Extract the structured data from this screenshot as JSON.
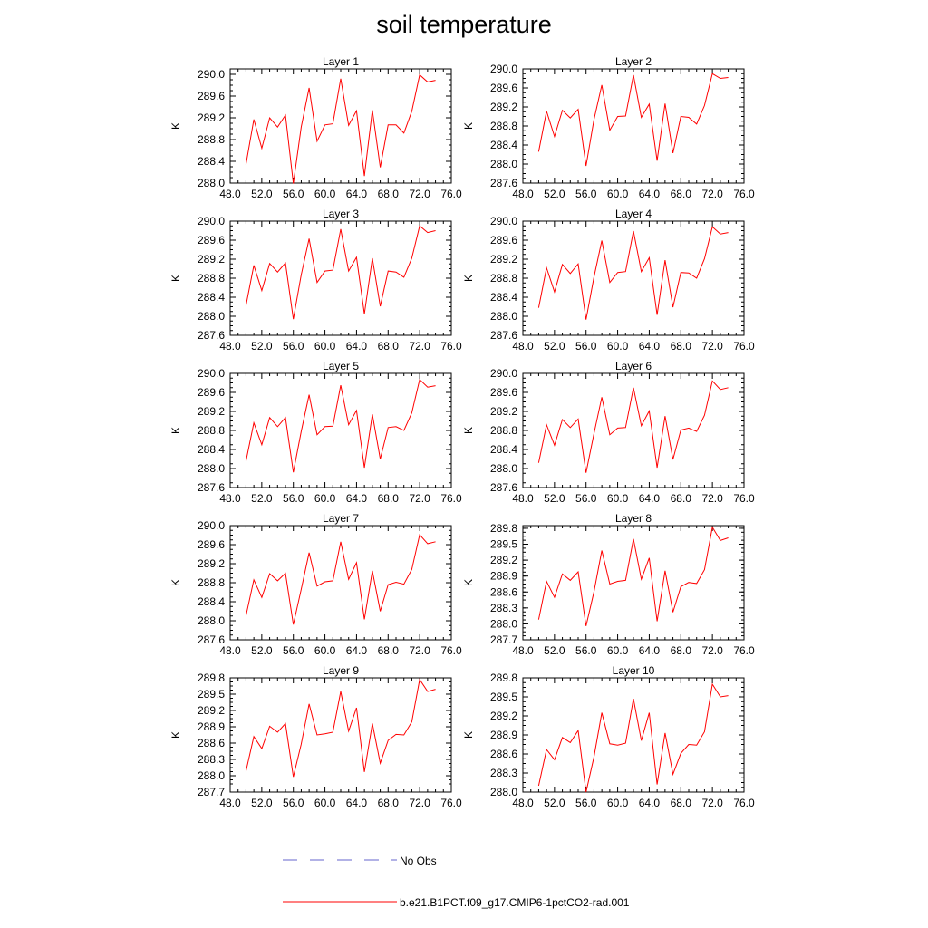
{
  "title": "soil temperature",
  "colors": {
    "model_line": "#ff0000",
    "obs_line": "#6666cc",
    "axis": "#000000"
  },
  "legend": [
    {
      "label": "No Obs",
      "style": "dashed",
      "color": "#6666cc"
    },
    {
      "label": "b.e21.B1PCT.f09_g17.CMIP6-1pctCO2-rad.001",
      "style": "solid",
      "color": "#ff0000"
    }
  ],
  "chart_data": [
    {
      "type": "line",
      "title": "Layer 1",
      "ylabel": "K",
      "xlim": [
        48,
        76
      ],
      "xticks": [
        "48.0",
        "52.0",
        "56.0",
        "60.0",
        "64.0",
        "68.0",
        "72.0",
        "76.0"
      ],
      "ylim": [
        288.0,
        290.1
      ],
      "yticks": [
        "288.0",
        "288.4",
        "288.8",
        "289.2",
        "289.6",
        "290.0"
      ],
      "ytick_values": [
        288.0,
        288.4,
        288.8,
        289.2,
        289.6,
        290.0
      ],
      "x": [
        50,
        51,
        52,
        53,
        54,
        55,
        56,
        57,
        58,
        59,
        60,
        61,
        62,
        63,
        64,
        65,
        66,
        67,
        68,
        69,
        70,
        71,
        72,
        73,
        74
      ],
      "series": [
        {
          "name": "b.e21.B1PCT.f09_g17.CMIP6-1pctCO2-rad.001",
          "values": [
            288.34,
            289.17,
            288.64,
            289.2,
            289.03,
            289.25,
            287.99,
            289.03,
            289.75,
            288.77,
            289.07,
            289.09,
            289.92,
            289.06,
            289.33,
            288.13,
            289.34,
            288.29,
            289.07,
            289.07,
            288.92,
            289.32,
            289.99,
            289.86,
            289.89
          ]
        }
      ]
    },
    {
      "type": "line",
      "title": "Layer 2",
      "ylabel": "K",
      "xlim": [
        48,
        76
      ],
      "xticks": [
        "48.0",
        "52.0",
        "56.0",
        "60.0",
        "64.0",
        "68.0",
        "72.0",
        "76.0"
      ],
      "ylim": [
        287.6,
        290.0
      ],
      "yticks": [
        "287.6",
        "288.0",
        "288.4",
        "288.8",
        "289.2",
        "289.6",
        "290.0"
      ],
      "ytick_values": [
        287.6,
        288.0,
        288.4,
        288.8,
        289.2,
        289.6,
        290.0
      ],
      "x": [
        50,
        51,
        52,
        53,
        54,
        55,
        56,
        57,
        58,
        59,
        60,
        61,
        62,
        63,
        64,
        65,
        66,
        67,
        68,
        69,
        70,
        71,
        72,
        73,
        74
      ],
      "series": [
        {
          "name": "b.e21.B1PCT.f09_g17.CMIP6-1pctCO2-rad.001",
          "values": [
            288.26,
            289.11,
            288.58,
            289.13,
            288.97,
            289.15,
            287.96,
            288.93,
            289.66,
            288.71,
            289.0,
            289.01,
            289.87,
            288.98,
            289.26,
            288.07,
            289.27,
            288.23,
            289.0,
            288.98,
            288.84,
            289.23,
            289.9,
            289.8,
            289.82
          ]
        }
      ]
    },
    {
      "type": "line",
      "title": "Layer 3",
      "ylabel": "K",
      "xlim": [
        48,
        76
      ],
      "xticks": [
        "48.0",
        "52.0",
        "56.0",
        "60.0",
        "64.0",
        "68.0",
        "72.0",
        "76.0"
      ],
      "ylim": [
        287.6,
        290.0
      ],
      "yticks": [
        "287.6",
        "288.0",
        "288.4",
        "288.8",
        "289.2",
        "289.6",
        "290.0"
      ],
      "ytick_values": [
        287.6,
        288.0,
        288.4,
        288.8,
        289.2,
        289.6,
        290.0
      ],
      "x": [
        50,
        51,
        52,
        53,
        54,
        55,
        56,
        57,
        58,
        59,
        60,
        61,
        62,
        63,
        64,
        65,
        66,
        67,
        68,
        69,
        70,
        71,
        72,
        73,
        74
      ],
      "series": [
        {
          "name": "b.e21.B1PCT.f09_g17.CMIP6-1pctCO2-rad.001",
          "values": [
            288.22,
            289.07,
            288.54,
            289.11,
            288.93,
            289.12,
            287.94,
            288.87,
            289.63,
            288.71,
            288.95,
            288.97,
            289.83,
            288.95,
            289.24,
            288.05,
            289.22,
            288.21,
            288.95,
            288.93,
            288.82,
            289.22,
            289.9,
            289.76,
            289.8
          ]
        }
      ]
    },
    {
      "type": "line",
      "title": "Layer 4",
      "ylabel": "K",
      "xlim": [
        48,
        76
      ],
      "xticks": [
        "48.0",
        "52.0",
        "56.0",
        "60.0",
        "64.0",
        "68.0",
        "72.0",
        "76.0"
      ],
      "ylim": [
        287.6,
        290.0
      ],
      "yticks": [
        "287.6",
        "288.0",
        "288.4",
        "288.8",
        "289.2",
        "289.6",
        "290.0"
      ],
      "ytick_values": [
        287.6,
        288.0,
        288.4,
        288.8,
        289.2,
        289.6,
        290.0
      ],
      "x": [
        50,
        51,
        52,
        53,
        54,
        55,
        56,
        57,
        58,
        59,
        60,
        61,
        62,
        63,
        64,
        65,
        66,
        67,
        68,
        69,
        70,
        71,
        72,
        73,
        74
      ],
      "series": [
        {
          "name": "b.e21.B1PCT.f09_g17.CMIP6-1pctCO2-rad.001",
          "values": [
            288.18,
            289.02,
            288.51,
            289.09,
            288.9,
            289.1,
            287.93,
            288.82,
            289.59,
            288.71,
            288.92,
            288.94,
            289.79,
            288.94,
            289.23,
            288.03,
            289.18,
            288.19,
            288.92,
            288.91,
            288.8,
            289.21,
            289.88,
            289.73,
            289.76
          ]
        }
      ]
    },
    {
      "type": "line",
      "title": "Layer 5",
      "ylabel": "K",
      "xlim": [
        48,
        76
      ],
      "xticks": [
        "48.0",
        "52.0",
        "56.0",
        "60.0",
        "64.0",
        "68.0",
        "72.0",
        "76.0"
      ],
      "ylim": [
        287.6,
        290.0
      ],
      "yticks": [
        "287.6",
        "288.0",
        "288.4",
        "288.8",
        "289.2",
        "289.6",
        "290.0"
      ],
      "ytick_values": [
        287.6,
        288.0,
        288.4,
        288.8,
        289.2,
        289.6,
        290.0
      ],
      "x": [
        50,
        51,
        52,
        53,
        54,
        55,
        56,
        57,
        58,
        59,
        60,
        61,
        62,
        63,
        64,
        65,
        66,
        67,
        68,
        69,
        70,
        71,
        72,
        73,
        74
      ],
      "series": [
        {
          "name": "b.e21.B1PCT.f09_g17.CMIP6-1pctCO2-rad.001",
          "values": [
            288.15,
            288.96,
            288.5,
            289.07,
            288.88,
            289.07,
            287.92,
            288.78,
            289.55,
            288.71,
            288.88,
            288.89,
            289.75,
            288.92,
            289.22,
            288.02,
            289.14,
            288.2,
            288.86,
            288.88,
            288.8,
            289.17,
            289.87,
            289.71,
            289.74
          ]
        }
      ]
    },
    {
      "type": "line",
      "title": "Layer 6",
      "ylabel": "K",
      "xlim": [
        48,
        76
      ],
      "xticks": [
        "48.0",
        "52.0",
        "56.0",
        "60.0",
        "64.0",
        "68.0",
        "72.0",
        "76.0"
      ],
      "ylim": [
        287.6,
        290.0
      ],
      "yticks": [
        "287.6",
        "288.0",
        "288.4",
        "288.8",
        "289.2",
        "289.6",
        "290.0"
      ],
      "ytick_values": [
        287.6,
        288.0,
        288.4,
        288.8,
        289.2,
        289.6,
        290.0
      ],
      "x": [
        50,
        51,
        52,
        53,
        54,
        55,
        56,
        57,
        58,
        59,
        60,
        61,
        62,
        63,
        64,
        65,
        66,
        67,
        68,
        69,
        70,
        71,
        72,
        73,
        74
      ],
      "series": [
        {
          "name": "b.e21.B1PCT.f09_g17.CMIP6-1pctCO2-rad.001",
          "values": [
            288.12,
            288.92,
            288.49,
            289.03,
            288.86,
            289.04,
            287.91,
            288.73,
            289.5,
            288.71,
            288.85,
            288.86,
            289.7,
            288.9,
            289.21,
            288.02,
            289.1,
            288.19,
            288.81,
            288.85,
            288.78,
            289.12,
            289.84,
            289.66,
            289.7
          ]
        }
      ]
    },
    {
      "type": "line",
      "title": "Layer 7",
      "ylabel": "K",
      "xlim": [
        48,
        76
      ],
      "xticks": [
        "48.0",
        "52.0",
        "56.0",
        "60.0",
        "64.0",
        "68.0",
        "72.0",
        "76.0"
      ],
      "ylim": [
        287.6,
        290.0
      ],
      "yticks": [
        "287.6",
        "288.0",
        "288.4",
        "288.8",
        "289.2",
        "289.6",
        "290.0"
      ],
      "ytick_values": [
        287.6,
        288.0,
        288.4,
        288.8,
        289.2,
        289.6,
        290.0
      ],
      "x": [
        50,
        51,
        52,
        53,
        54,
        55,
        56,
        57,
        58,
        59,
        60,
        61,
        62,
        63,
        64,
        65,
        66,
        67,
        68,
        69,
        70,
        71,
        72,
        73,
        74
      ],
      "series": [
        {
          "name": "b.e21.B1PCT.f09_g17.CMIP6-1pctCO2-rad.001",
          "values": [
            288.1,
            288.86,
            288.49,
            288.99,
            288.84,
            289.0,
            287.92,
            288.66,
            289.43,
            288.73,
            288.82,
            288.84,
            289.66,
            288.87,
            289.22,
            288.03,
            289.05,
            288.2,
            288.76,
            288.81,
            288.77,
            289.08,
            289.81,
            289.62,
            289.66
          ]
        }
      ]
    },
    {
      "type": "line",
      "title": "Layer 8",
      "ylabel": "K",
      "xlim": [
        48,
        76
      ],
      "xticks": [
        "48.0",
        "52.0",
        "56.0",
        "60.0",
        "64.0",
        "68.0",
        "72.0",
        "76.0"
      ],
      "ylim": [
        287.7,
        289.85
      ],
      "yticks": [
        "287.7",
        "288.0",
        "288.3",
        "288.6",
        "288.9",
        "289.2",
        "289.5",
        "289.8"
      ],
      "ytick_values": [
        287.7,
        288.0,
        288.3,
        288.6,
        288.9,
        289.2,
        289.5,
        289.8
      ],
      "x": [
        50,
        51,
        52,
        53,
        54,
        55,
        56,
        57,
        58,
        59,
        60,
        61,
        62,
        63,
        64,
        65,
        66,
        67,
        68,
        69,
        70,
        71,
        72,
        73,
        74
      ],
      "series": [
        {
          "name": "b.e21.B1PCT.f09_g17.CMIP6-1pctCO2-rad.001",
          "values": [
            288.08,
            288.8,
            288.5,
            288.94,
            288.82,
            288.98,
            287.96,
            288.6,
            289.38,
            288.75,
            288.8,
            288.82,
            289.6,
            288.84,
            289.24,
            288.05,
            289.0,
            288.22,
            288.7,
            288.78,
            288.76,
            289.02,
            289.82,
            289.57,
            289.62
          ]
        }
      ]
    },
    {
      "type": "line",
      "title": "Layer 9",
      "ylabel": "K",
      "xlim": [
        48,
        76
      ],
      "xticks": [
        "48.0",
        "52.0",
        "56.0",
        "60.0",
        "64.0",
        "68.0",
        "72.0",
        "76.0"
      ],
      "ylim": [
        287.7,
        289.8
      ],
      "yticks": [
        "287.7",
        "288.0",
        "288.3",
        "288.6",
        "288.9",
        "289.2",
        "289.5",
        "289.8"
      ],
      "ytick_values": [
        287.7,
        288.0,
        288.3,
        288.6,
        288.9,
        289.2,
        289.5,
        289.8
      ],
      "x": [
        50,
        51,
        52,
        53,
        54,
        55,
        56,
        57,
        58,
        59,
        60,
        61,
        62,
        63,
        64,
        65,
        66,
        67,
        68,
        69,
        70,
        71,
        72,
        73,
        74
      ],
      "series": [
        {
          "name": "b.e21.B1PCT.f09_g17.CMIP6-1pctCO2-rad.001",
          "values": [
            288.08,
            288.72,
            288.5,
            288.91,
            288.8,
            288.96,
            287.98,
            288.58,
            289.32,
            288.75,
            288.77,
            288.8,
            289.55,
            288.82,
            289.25,
            288.07,
            288.96,
            288.23,
            288.65,
            288.76,
            288.75,
            288.99,
            289.77,
            289.55,
            289.59
          ]
        }
      ]
    },
    {
      "type": "line",
      "title": "Layer 10",
      "ylabel": "K",
      "xlim": [
        48,
        76
      ],
      "xticks": [
        "48.0",
        "52.0",
        "56.0",
        "60.0",
        "64.0",
        "68.0",
        "72.0",
        "76.0"
      ],
      "ylim": [
        288.0,
        289.8
      ],
      "yticks": [
        "288.0",
        "288.3",
        "288.6",
        "288.9",
        "289.2",
        "289.5",
        "289.8"
      ],
      "ytick_values": [
        288.0,
        288.3,
        288.6,
        288.9,
        289.2,
        289.5,
        289.8
      ],
      "x": [
        50,
        51,
        52,
        53,
        54,
        55,
        56,
        57,
        58,
        59,
        60,
        61,
        62,
        63,
        64,
        65,
        66,
        67,
        68,
        69,
        70,
        71,
        72,
        73,
        74
      ],
      "series": [
        {
          "name": "b.e21.B1PCT.f09_g17.CMIP6-1pctCO2-rad.001",
          "values": [
            288.1,
            288.67,
            288.51,
            288.86,
            288.78,
            288.97,
            288.0,
            288.55,
            289.25,
            288.76,
            288.74,
            288.77,
            289.47,
            288.81,
            289.25,
            288.12,
            288.93,
            288.28,
            288.61,
            288.75,
            288.74,
            288.95,
            289.7,
            289.5,
            289.52
          ]
        }
      ]
    }
  ]
}
